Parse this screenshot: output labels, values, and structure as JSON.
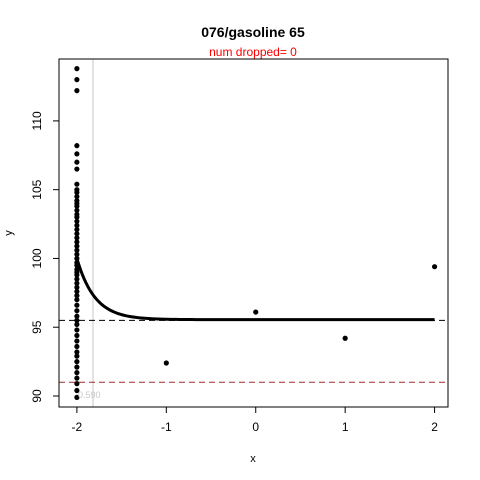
{
  "chart_data": {
    "type": "scatter",
    "title": "076/gasoline 65",
    "subtitle": "num dropped= 0",
    "xlabel": "x",
    "ylabel": "y",
    "xlim": [
      -2.2,
      2.15
    ],
    "ylim": [
      89.2,
      114.5
    ],
    "xticks": [
      -2,
      -1,
      0,
      1,
      2
    ],
    "yticks": [
      90,
      95,
      100,
      105,
      110
    ],
    "annotation": "0.590",
    "vertical_line": {
      "x": -1.82,
      "color": "#c8c8c8"
    },
    "hlines": [
      {
        "y": 95.5,
        "color": "#000000",
        "style": "dashed"
      },
      {
        "y": 91.0,
        "color": "#a52a2a",
        "style": "dashed"
      }
    ],
    "fit_curve": {
      "x_start": -2,
      "x_end": 2,
      "asymptote": 95.55,
      "start_y": 100.0,
      "decay_rate": 5.0
    },
    "points": [
      {
        "x": -1,
        "y": 92.4
      },
      {
        "x": 0,
        "y": 96.1
      },
      {
        "x": 1,
        "y": 94.2
      },
      {
        "x": 2,
        "y": 99.4
      }
    ],
    "column_x": -2,
    "column_y": [
      113.8,
      113.0,
      112.2,
      108.2,
      107.6,
      107.0,
      106.5,
      105.4,
      105.0,
      104.8,
      104.5,
      104.2,
      104.0,
      103.8,
      103.5,
      103.2,
      103.0,
      102.7,
      102.4,
      102.1,
      101.8,
      101.5,
      101.2,
      100.9,
      100.6,
      100.3,
      100.0,
      99.7,
      99.5,
      99.2,
      99.0,
      98.8,
      98.5,
      98.2,
      97.9,
      97.6,
      97.3,
      97.0,
      96.6,
      96.2,
      95.8,
      95.5,
      95.2,
      94.8,
      94.4,
      94.0,
      93.6,
      93.2,
      92.9,
      92.5,
      92.1,
      91.7,
      91.3,
      90.9,
      90.4,
      89.9
    ],
    "colors": {
      "points": "#000000",
      "title": "#000000",
      "subtitle": "#ff0000",
      "annotation": "#c8c8c8"
    }
  }
}
